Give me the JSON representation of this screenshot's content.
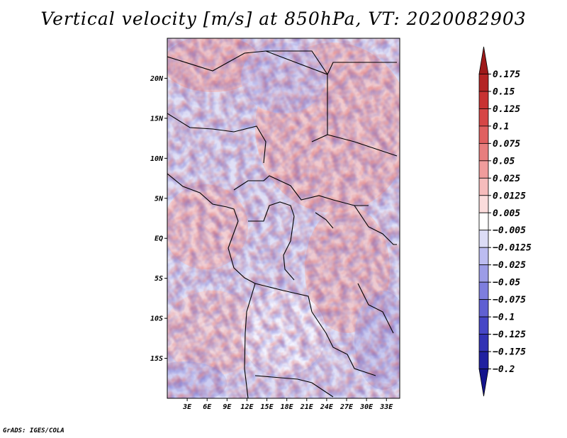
{
  "title": "Vertical velocity [m/s] at 850hPa, VT: 2020082903",
  "footer": "GrADS: IGES/COLA",
  "map": {
    "lon_range": [
      0,
      35
    ],
    "lat_range": [
      -20,
      25
    ],
    "lat_ticks": [
      {
        "value": 20,
        "label": "20N"
      },
      {
        "value": 15,
        "label": "15N"
      },
      {
        "value": 10,
        "label": "10N"
      },
      {
        "value": 5,
        "label": "5N"
      },
      {
        "value": 0,
        "label": "EQ"
      },
      {
        "value": -5,
        "label": "5S"
      },
      {
        "value": -10,
        "label": "10S"
      },
      {
        "value": -15,
        "label": "15S"
      }
    ],
    "lon_ticks": [
      {
        "value": 3,
        "label": "3E"
      },
      {
        "value": 6,
        "label": "6E"
      },
      {
        "value": 9,
        "label": "9E"
      },
      {
        "value": 12,
        "label": "12E"
      },
      {
        "value": 15,
        "label": "15E"
      },
      {
        "value": 18,
        "label": "18E"
      },
      {
        "value": 21,
        "label": "21E"
      },
      {
        "value": 24,
        "label": "24E"
      },
      {
        "value": 27,
        "label": "27E"
      },
      {
        "value": 30,
        "label": "30E"
      },
      {
        "value": 33,
        "label": "33E"
      }
    ]
  },
  "colorbar": {
    "labels": [
      "0.175",
      "0.15",
      "0.125",
      "0.1",
      "0.075",
      "0.05",
      "0.025",
      "0.0125",
      "0.005",
      "−0.005",
      "−0.0125",
      "−0.025",
      "−0.05",
      "−0.075",
      "−0.1",
      "−0.125",
      "−0.175",
      "−0.2"
    ],
    "colors": [
      "#9e1a1a",
      "#b42424",
      "#c83232",
      "#d64646",
      "#e06060",
      "#e87e7e",
      "#f09c9c",
      "#f6bcbc",
      "#fbdcdc",
      "#ffffff",
      "#dcdcf6",
      "#bcbcf0",
      "#9c9ce6",
      "#7e7ede",
      "#6060d2",
      "#4646c6",
      "#3232b4",
      "#2020a0",
      "#14148c"
    ]
  }
}
